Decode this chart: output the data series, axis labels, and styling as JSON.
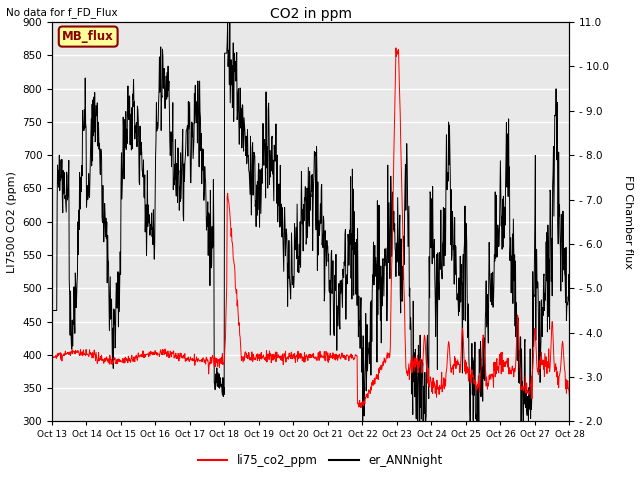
{
  "title": "CO2 in ppm",
  "top_left_text": "No data for f_FD_Flux",
  "ylabel_left": "LI7500 CO2 (ppm)",
  "ylabel_right": "FD Chamber flux",
  "ylim_left": [
    300,
    900
  ],
  "ylim_right": [
    2.0,
    11.0
  ],
  "yticks_left": [
    300,
    350,
    400,
    450,
    500,
    550,
    600,
    650,
    700,
    750,
    800,
    850,
    900
  ],
  "yticks_right": [
    2.0,
    3.0,
    4.0,
    5.0,
    6.0,
    7.0,
    8.0,
    9.0,
    10.0,
    11.0
  ],
  "xtick_labels": [
    "Oct 13",
    "Oct 14",
    "Oct 15",
    "Oct 16",
    "Oct 17",
    "Oct 18",
    "Oct 19",
    "Oct 20",
    "Oct 21",
    "Oct 22",
    "Oct 23",
    "Oct 24",
    "Oct 25",
    "Oct 26",
    "Oct 27",
    "Oct 28"
  ],
  "legend_entries": [
    "li75_co2_ppm",
    "er_ANNnight"
  ],
  "legend_colors": [
    "red",
    "black"
  ],
  "annotation_box": "MB_flux",
  "annotation_box_color": "#ffff99",
  "annotation_box_border": "#8B0000",
  "bg_color": "#e8e8e8",
  "line1_color": "red",
  "line2_color": "black",
  "figsize": [
    6.4,
    4.8
  ],
  "dpi": 100
}
